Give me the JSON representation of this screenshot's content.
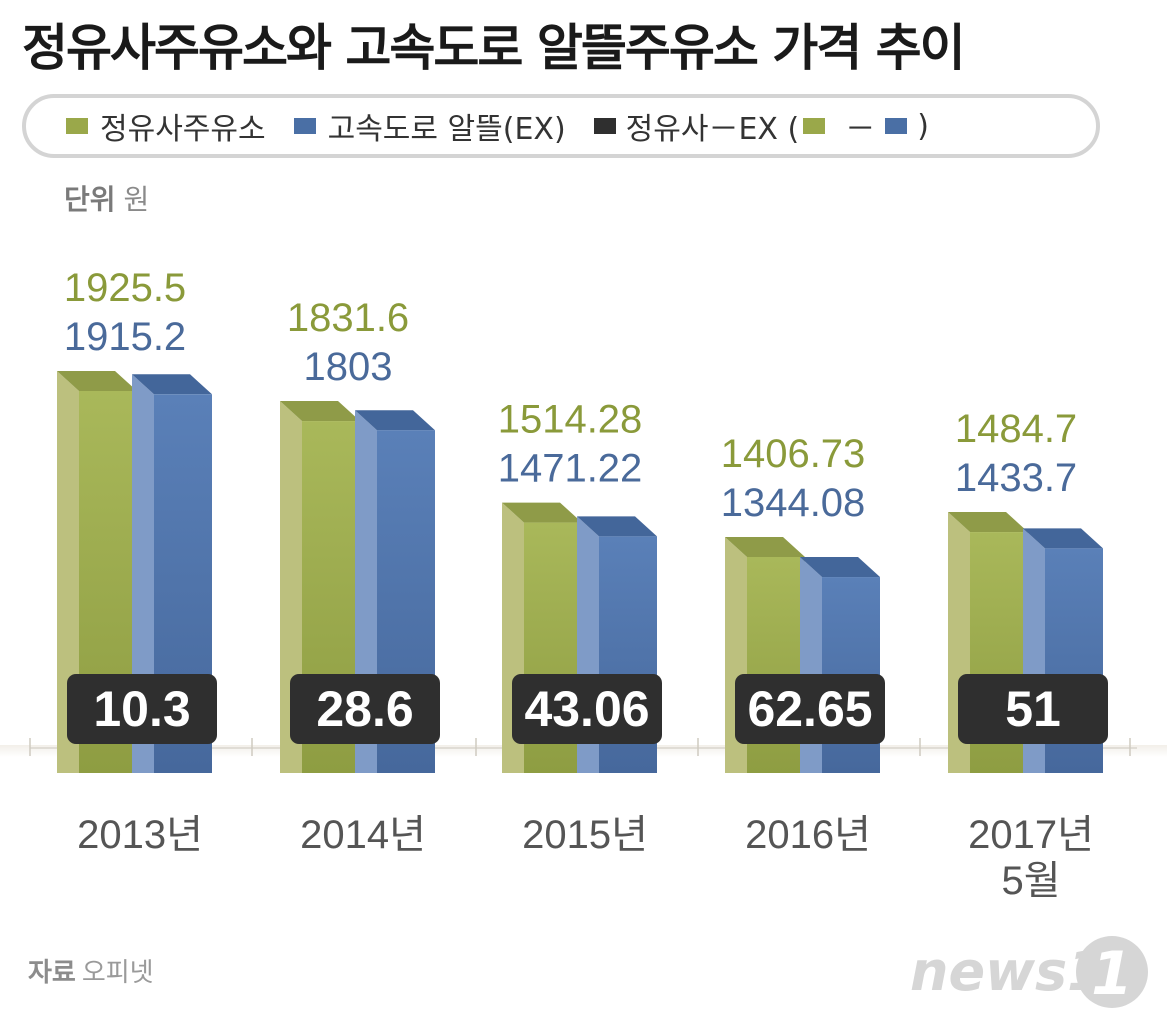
{
  "title": "정유사주유소와 고속도로 알뜰주유소 가격 추이",
  "legend": {
    "refinery": "정유사주유소",
    "highway": "고속도로 알뜰(EX)",
    "diff_label": "정유사－EX (",
    "diff_minus": "－",
    "diff_close": ")"
  },
  "unit": {
    "label": "단위",
    "value": "원"
  },
  "colors": {
    "refinery": "#9aa84a",
    "highway": "#4a6fa5",
    "diff_badge": "#2f2f2f",
    "refinery_label": "#8a9a3a",
    "highway_label": "#4a6a9a"
  },
  "chart_data": {
    "type": "bar",
    "title": "정유사주유소와 고속도로 알뜰주유소 가격 추이",
    "ylabel": "원",
    "categories": [
      "2013년",
      "2014년",
      "2015년",
      "2016년",
      "2017년\n5월"
    ],
    "series": [
      {
        "name": "정유사주유소",
        "values": [
          1925.5,
          1831.6,
          1514.28,
          1406.73,
          1484.7
        ],
        "labels": [
          "1925.5",
          "1831.6",
          "1514.28",
          "1406.73",
          "1484.7"
        ]
      },
      {
        "name": "고속도로 알뜰(EX)",
        "values": [
          1915.2,
          1803,
          1471.22,
          1344.08,
          1433.7
        ],
        "labels": [
          "1915.2",
          "1803",
          "1471.22",
          "1344.08",
          "1433.7"
        ]
      }
    ],
    "difference": {
      "name": "정유사－EX",
      "values": [
        10.3,
        28.6,
        43.06,
        62.65,
        51
      ],
      "labels": [
        "10.3",
        "28.6",
        "43.06",
        "62.65",
        "51"
      ]
    },
    "grid": false
  },
  "source": {
    "label": "자료",
    "value": "오피넷"
  },
  "logo_text": "news1"
}
